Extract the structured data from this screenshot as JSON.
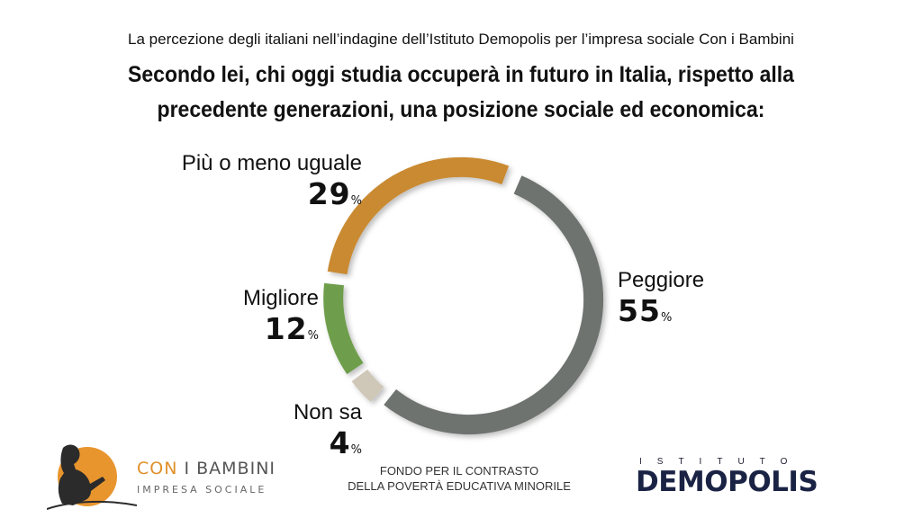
{
  "header": {
    "subtitle": "La percezione degli italiani nell’indagine dell’Istituto Demopolis per l’impresa sociale Con i Bambini",
    "title_line1": "Secondo lei, chi oggi studia occuperà in futuro in Italia, rispetto alla",
    "title_line2": "precedente generazioni, una posizione sociale ed economica:"
  },
  "chart_data": {
    "type": "pie",
    "subtype": "donut",
    "title": "Secondo lei, chi oggi studia occuperà in futuro in Italia, rispetto alla precedente generazioni, una posizione sociale ed economica:",
    "unit": "%",
    "slices": [
      {
        "label": "Peggiore",
        "value": 55,
        "color": "#6e736f"
      },
      {
        "label": "Non sa",
        "value": 4,
        "color": "#cfc7b7"
      },
      {
        "label": "Migliore",
        "value": 12,
        "color": "#6e9e4c"
      },
      {
        "label": "Più o meno uguale",
        "value": 29,
        "color": "#c98a32"
      }
    ]
  },
  "labels": {
    "peggiore": {
      "name": "Peggiore",
      "value": "55",
      "unit": "%"
    },
    "non_sa": {
      "name": "Non sa",
      "value": "4",
      "unit": "%"
    },
    "migliore": {
      "name": "Migliore",
      "value": "12",
      "unit": "%"
    },
    "uguale": {
      "name": "Più o meno uguale",
      "value": "29",
      "unit": "%"
    }
  },
  "footer": {
    "cib_name_part1": "CON",
    "cib_name_part2": "I BAMBINI",
    "cib_sub": "IMPRESA SOCIALE",
    "fund_line1": "FONDO PER IL CONTRASTO",
    "fund_line2": "DELLA POVERTÀ EDUCATIVA MINORILE",
    "demopolis_top": "ISTITUTO",
    "demopolis_name": "DEMOPOLIS"
  }
}
